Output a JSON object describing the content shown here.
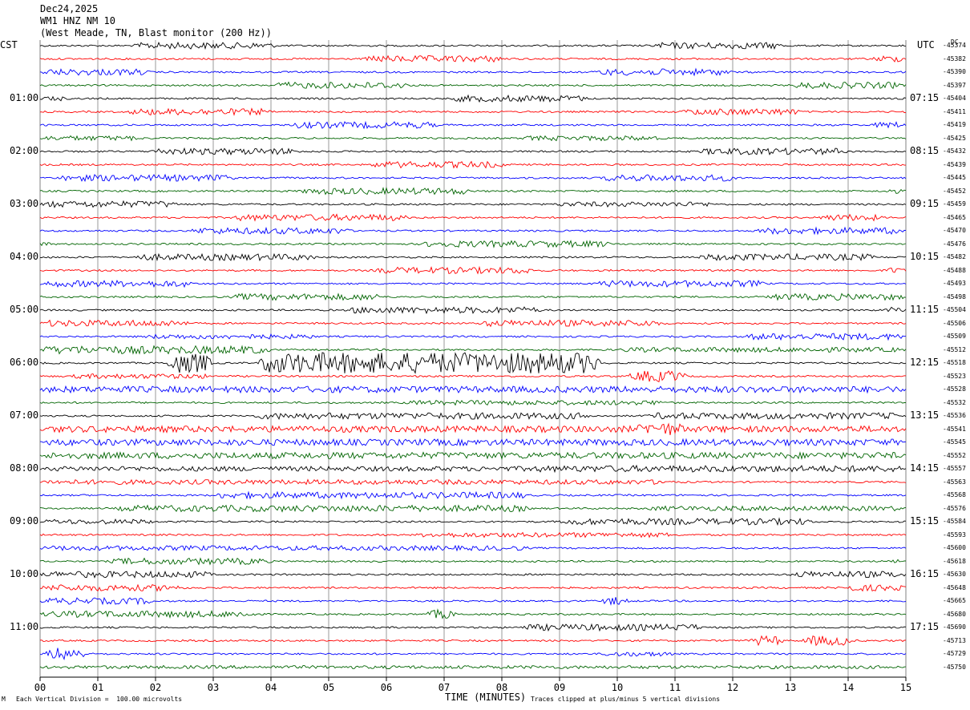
{
  "header": {
    "date": "Dec24,2025",
    "station": "WM1 HNZ NM 10",
    "location": "(West Meade, TN, Blast monitor (200 Hz))"
  },
  "left_timezone": "CST",
  "right_timezone": "UTC",
  "dc_label": "DC",
  "footer": {
    "left_note": "Each Vertical Division =  100.00 microvolts",
    "xlabel": "TIME (MINUTES)",
    "right_note": "Traces clipped at plus/minus 5 vertical divisions",
    "corner_mark": "M"
  },
  "colors": {
    "black": "#000000",
    "red": "#ff0000",
    "blue": "#0000ff",
    "green": "#006400",
    "grid": "#808080"
  },
  "chart_data": {
    "type": "line",
    "subtype": "helicorder",
    "x_range": [
      0,
      15
    ],
    "x_ticks": [
      "00",
      "01",
      "02",
      "03",
      "04",
      "05",
      "06",
      "07",
      "08",
      "09",
      "10",
      "11",
      "12",
      "13",
      "14",
      "15"
    ],
    "trace_color_cycle": [
      "black",
      "red",
      "blue",
      "green"
    ],
    "hour_labels_left": [
      "01:00",
      "02:00",
      "03:00",
      "04:00",
      "05:00",
      "06:00",
      "07:00",
      "08:00",
      "09:00",
      "10:00",
      "11:00"
    ],
    "hour_labels_right": [
      "07:15",
      "08:15",
      "09:15",
      "10:15",
      "11:15",
      "12:15",
      "13:15",
      "14:15",
      "15:15",
      "16:15",
      "17:15"
    ],
    "dc_offsets": [
      "-45374",
      "-45382",
      "-45390",
      "-45397",
      "-45404",
      "-45411",
      "-45419",
      "-45425",
      "-45432",
      "-45439",
      "-45445",
      "-45452",
      "-45459",
      "-45465",
      "-45470",
      "-45476",
      "-45482",
      "-45488",
      "-45493",
      "-45498",
      "-45504",
      "-45506",
      "-45509",
      "-45512",
      "-45518",
      "-45523",
      "-45528",
      "-45532",
      "-45536",
      "-45541",
      "-45545",
      "-45552",
      "-45557",
      "-45563",
      "-45568",
      "-45576",
      "-45584",
      "-45593",
      "-45600",
      "-45618",
      "-45630",
      "-45648",
      "-45665",
      "-45680",
      "-45690",
      "-45713",
      "-45729",
      "-45750"
    ],
    "traces": [
      {
        "color": "black",
        "bursts": [
          [
            1.6,
            4.1,
            4
          ],
          [
            10.6,
            12.9,
            4
          ]
        ]
      },
      {
        "color": "red",
        "bursts": [
          [
            5.6,
            8.1,
            4
          ],
          [
            14.4,
            15,
            4
          ]
        ]
      },
      {
        "color": "blue",
        "bursts": [
          [
            0,
            1.9,
            4
          ],
          [
            9.6,
            12.0,
            4
          ]
        ]
      },
      {
        "color": "green",
        "bursts": [
          [
            4.0,
            6.4,
            4
          ],
          [
            13.0,
            15,
            4
          ]
        ]
      },
      {
        "color": "black",
        "bursts": [
          [
            0,
            0.5,
            3
          ],
          [
            7.1,
            9.5,
            4
          ]
        ]
      },
      {
        "color": "red",
        "bursts": [
          [
            1.5,
            4.0,
            4
          ],
          [
            11.1,
            13.2,
            4
          ]
        ]
      },
      {
        "color": "blue",
        "bursts": [
          [
            4.3,
            6.9,
            4
          ],
          [
            14.4,
            15,
            4
          ]
        ]
      },
      {
        "color": "green",
        "bursts": [
          [
            0,
            1.8,
            3
          ],
          [
            8.3,
            10.8,
            3
          ]
        ]
      },
      {
        "color": "black",
        "bursts": [
          [
            1.9,
            4.5,
            4
          ],
          [
            11.4,
            14.0,
            4
          ]
        ]
      },
      {
        "color": "red",
        "bursts": [
          [
            5.7,
            8.1,
            4
          ]
        ]
      },
      {
        "color": "blue",
        "bursts": [
          [
            0.3,
            3.4,
            4
          ],
          [
            9.7,
            12.1,
            4
          ]
        ]
      },
      {
        "color": "green",
        "bursts": [
          [
            4.5,
            7.5,
            4
          ],
          [
            14.6,
            15,
            3
          ]
        ]
      },
      {
        "color": "black",
        "bursts": [
          [
            0,
            2.4,
            4
          ],
          [
            8.9,
            11.7,
            3
          ]
        ]
      },
      {
        "color": "red",
        "bursts": [
          [
            3.3,
            6.4,
            4
          ],
          [
            13.5,
            14.6,
            4
          ]
        ]
      },
      {
        "color": "blue",
        "bursts": [
          [
            2.6,
            5.4,
            4
          ],
          [
            12.4,
            15,
            4
          ]
        ]
      },
      {
        "color": "green",
        "bursts": [
          [
            0,
            0.2,
            4
          ],
          [
            6.6,
            9.9,
            4
          ]
        ]
      },
      {
        "color": "black",
        "bursts": [
          [
            1.6,
            4.8,
            4
          ],
          [
            11.4,
            14.5,
            4
          ]
        ]
      },
      {
        "color": "red",
        "bursts": [
          [
            5.8,
            8.6,
            4
          ],
          [
            14.6,
            15,
            4
          ]
        ]
      },
      {
        "color": "blue",
        "bursts": [
          [
            0,
            2.7,
            4
          ],
          [
            9.6,
            12.6,
            4
          ]
        ]
      },
      {
        "color": "green",
        "bursts": [
          [
            3.3,
            6.0,
            4
          ],
          [
            12.6,
            15,
            4
          ]
        ]
      },
      {
        "color": "black",
        "bursts": [
          [
            5.3,
            8.7,
            4
          ],
          [
            14.6,
            15,
            4
          ]
        ]
      },
      {
        "color": "red",
        "bursts": [
          [
            0,
            2.6,
            4
          ],
          [
            7.6,
            10.8,
            4
          ]
        ]
      },
      {
        "color": "blue",
        "bursts": [
          [
            1.8,
            4.8,
            3
          ],
          [
            12.2,
            15,
            4
          ]
        ]
      },
      {
        "color": "green",
        "bursts": [
          [
            0,
            4.0,
            5
          ],
          [
            10.0,
            15,
            3
          ]
        ]
      },
      {
        "color": "black",
        "bursts": [
          [
            0,
            0.1,
            3
          ],
          [
            2.2,
            3.0,
            12
          ],
          [
            3.8,
            9.7,
            13
          ]
        ]
      },
      {
        "color": "red",
        "bursts": [
          [
            0.5,
            3.0,
            3
          ],
          [
            10.2,
            11.2,
            7
          ]
        ]
      },
      {
        "color": "blue",
        "bursts": [
          [
            0,
            15,
            4
          ]
        ]
      },
      {
        "color": "green",
        "bursts": [
          [
            6.3,
            10.9,
            3
          ]
        ]
      },
      {
        "color": "black",
        "bursts": [
          [
            3.7,
            9.6,
            4
          ],
          [
            10.5,
            15,
            4
          ]
        ]
      },
      {
        "color": "red",
        "bursts": [
          [
            0,
            15,
            4
          ],
          [
            10.3,
            11.2,
            8
          ]
        ]
      },
      {
        "color": "blue",
        "bursts": [
          [
            0,
            15,
            4
          ]
        ]
      },
      {
        "color": "green",
        "bursts": [
          [
            0,
            15,
            4
          ]
        ]
      },
      {
        "color": "black",
        "bursts": [
          [
            0,
            15,
            3
          ],
          [
            8.4,
            15,
            4
          ]
        ]
      },
      {
        "color": "red",
        "bursts": [
          [
            0,
            11.0,
            3
          ]
        ]
      },
      {
        "color": "blue",
        "bursts": [
          [
            3.0,
            8.5,
            4
          ]
        ]
      },
      {
        "color": "green",
        "bursts": [
          [
            1.3,
            8.5,
            4
          ],
          [
            10.5,
            15,
            3
          ]
        ]
      },
      {
        "color": "black",
        "bursts": [
          [
            0,
            2.0,
            3
          ],
          [
            9.0,
            13.4,
            4
          ]
        ]
      },
      {
        "color": "red",
        "bursts": [
          [
            6.5,
            11.0,
            3
          ]
        ]
      },
      {
        "color": "blue",
        "bursts": [
          [
            0,
            8.5,
            3
          ]
        ]
      },
      {
        "color": "green",
        "bursts": [
          [
            1.2,
            4.0,
            4
          ],
          [
            14.7,
            15,
            3
          ]
        ]
      },
      {
        "color": "black",
        "bursts": [
          [
            0,
            3.0,
            4
          ],
          [
            13.0,
            15,
            4
          ]
        ]
      },
      {
        "color": "red",
        "bursts": [
          [
            0,
            2.5,
            4
          ],
          [
            13.8,
            15,
            4
          ]
        ]
      },
      {
        "color": "blue",
        "bursts": [
          [
            0,
            2.0,
            4
          ],
          [
            9.7,
            10.2,
            5
          ]
        ]
      },
      {
        "color": "green",
        "bursts": [
          [
            0,
            3.8,
            4
          ],
          [
            6.7,
            7.2,
            6
          ]
        ]
      },
      {
        "color": "black",
        "bursts": [
          [
            8.3,
            11.5,
            4
          ]
        ]
      },
      {
        "color": "red",
        "bursts": [
          [
            12.3,
            12.9,
            6
          ],
          [
            13.2,
            14.1,
            6
          ]
        ]
      },
      {
        "color": "blue",
        "bursts": [
          [
            0.1,
            0.8,
            8
          ],
          [
            9.7,
            11.0,
            3
          ]
        ]
      },
      {
        "color": "green",
        "bursts": [
          [
            0,
            15,
            2
          ]
        ]
      }
    ]
  }
}
